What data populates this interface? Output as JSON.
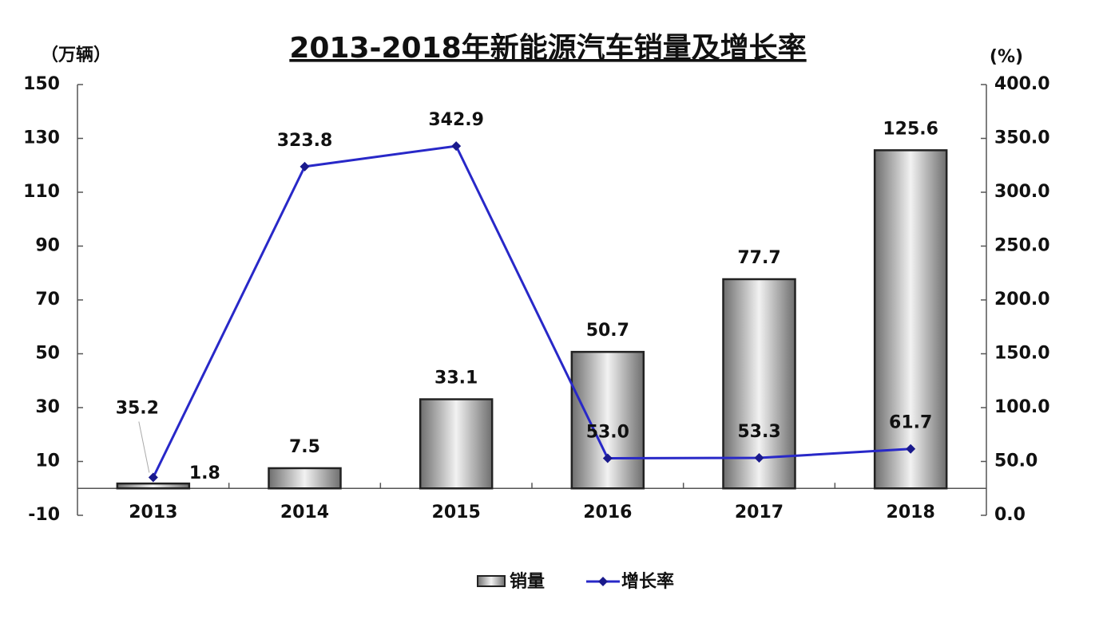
{
  "chart_data": {
    "type": "bar-line",
    "title": "2013-2018年新能源汽车销量及增长率",
    "y_label": "（万辆）",
    "y2_label": "(%)",
    "categories": [
      "2013",
      "2014",
      "2015",
      "2016",
      "2017",
      "2018"
    ],
    "series": [
      {
        "name": "销量",
        "type": "bar",
        "color": "#808080",
        "values": [
          1.8,
          7.5,
          33.1,
          50.7,
          77.7,
          125.6
        ]
      },
      {
        "name": "增长率",
        "type": "line",
        "axis": "y2",
        "color": "#2828c8",
        "values": [
          35.2,
          323.8,
          342.9,
          53.0,
          53.3,
          61.7
        ],
        "value_labels": [
          "35.2",
          "323.8",
          "342.9",
          "53.0",
          "53.3",
          "61.7"
        ]
      }
    ],
    "ylim": [
      -10,
      150
    ],
    "yticks": [
      -10,
      10,
      30,
      50,
      70,
      90,
      110,
      130,
      150
    ],
    "y2lim": [
      0,
      400
    ],
    "y2ticks": [
      {
        "value": 0,
        "label": "0.0"
      },
      {
        "value": 50,
        "label": "50.0"
      },
      {
        "value": 100,
        "label": "100.0"
      },
      {
        "value": 150,
        "label": "150.0"
      },
      {
        "value": 200,
        "label": "200.0"
      },
      {
        "value": 250,
        "label": "250.0"
      },
      {
        "value": 300,
        "label": "300.0"
      },
      {
        "value": 350,
        "label": "350.0"
      },
      {
        "value": 400,
        "label": "400.0"
      }
    ],
    "legend": "bottom"
  }
}
